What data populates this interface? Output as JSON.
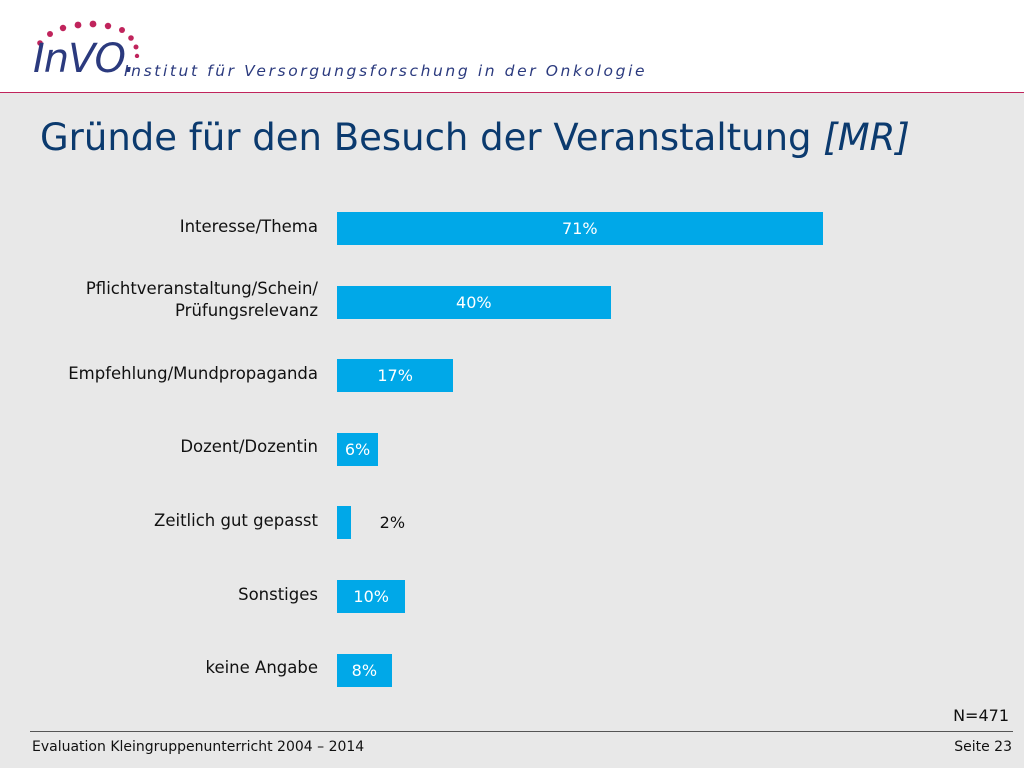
{
  "header": {
    "logo_text": "InVO.",
    "institute_name": "Institut für Versorgungsforschung in der Onkologie"
  },
  "slide": {
    "title": "Gründe für den Besuch der Veranstaltung",
    "title_suffix": "[MR]",
    "sample_size": "N=471"
  },
  "footer": {
    "left": "Evaluation Kleingruppenunterricht 2004 – 2014",
    "right": "Seite 23"
  },
  "colors": {
    "bar": "#00a8e8",
    "title": "#0b3a6e",
    "logo": "#2b3a7e",
    "accent": "#c0245c"
  },
  "chart_data": {
    "type": "bar",
    "orientation": "horizontal",
    "categories": [
      "Interesse/Thema",
      "Pflichtveranstaltung/Schein/ Prüfungsrelevanz",
      "Empfehlung/Mundpropaganda",
      "Dozent/Dozentin",
      "Zeitlich gut gepasst",
      "Sonstiges",
      "keine Angabe"
    ],
    "values": [
      71,
      40,
      17,
      6,
      2,
      10,
      8
    ],
    "value_labels": [
      "71%",
      "40%",
      "17%",
      "6%",
      "2%",
      "10%",
      "8%"
    ],
    "unit": "%",
    "xlim": [
      0,
      100
    ],
    "grid": false,
    "legend": "none"
  }
}
